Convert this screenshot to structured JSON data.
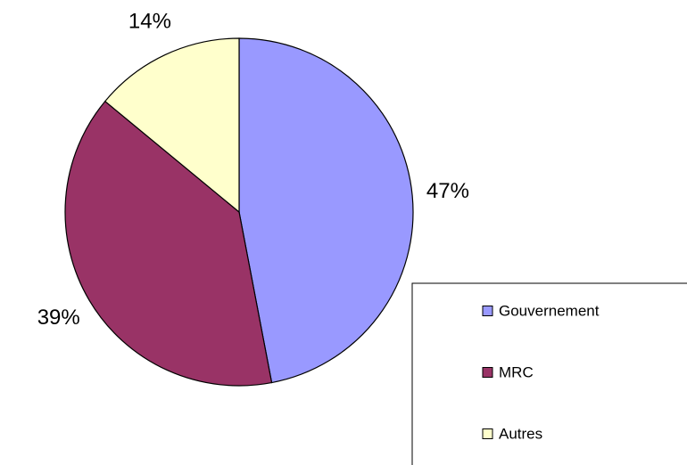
{
  "chart_data": {
    "type": "pie",
    "categories": [
      "Gouvernement",
      "MRC",
      "Autres"
    ],
    "values": [
      47,
      39,
      14
    ],
    "value_labels": [
      "47%",
      "39%",
      "14%"
    ],
    "colors": [
      "#9999ff",
      "#993366",
      "#ffffcc"
    ],
    "legend": "right"
  }
}
